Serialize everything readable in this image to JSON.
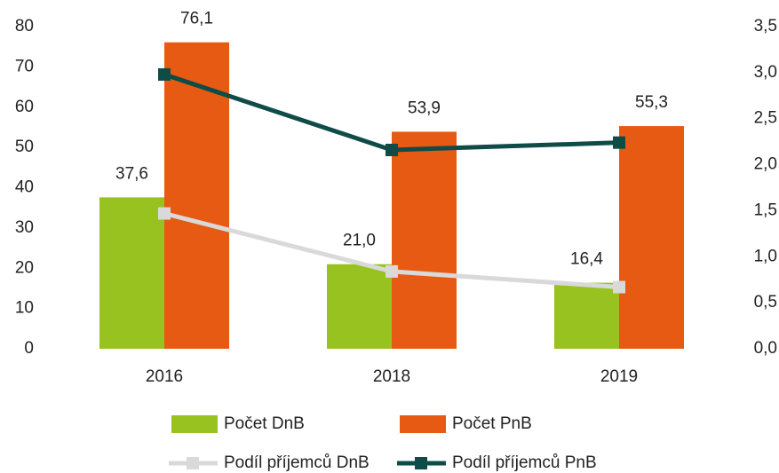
{
  "chart_data": {
    "type": "bar_line",
    "categories": [
      "2016",
      "2018",
      "2019"
    ],
    "series": [
      {
        "name": "Počet DnB",
        "type": "bar",
        "color": "#97c21f",
        "values": [
          37.6,
          21.0,
          16.4
        ],
        "value_labels": [
          "37,6",
          "21,0",
          "16,4"
        ]
      },
      {
        "name": "Počet PnB",
        "type": "bar",
        "color": "#e65a13",
        "values": [
          76.1,
          53.9,
          55.3
        ],
        "value_labels": [
          "76,1",
          "53,9",
          "55,3"
        ]
      },
      {
        "name": "Podíl příjemců DnB",
        "type": "line",
        "axis": "y2",
        "color": "#d9d9d9",
        "values": [
          1.47,
          0.84,
          0.67
        ]
      },
      {
        "name": "Podíl příjemců PnB",
        "type": "line",
        "axis": "y2",
        "color": "#0f4b47",
        "values": [
          2.98,
          2.16,
          2.24
        ]
      }
    ],
    "ylim": [
      0,
      80
    ],
    "yticks": [
      0,
      10,
      20,
      30,
      40,
      50,
      60,
      70,
      80
    ],
    "y2lim": [
      0,
      3.5
    ],
    "y2ticks": [
      {
        "value": 0,
        "label": "0,0"
      },
      {
        "value": 0.5,
        "label": "0,5"
      },
      {
        "value": 1,
        "label": "1,0"
      },
      {
        "value": 1.5,
        "label": "1,5"
      },
      {
        "value": 2,
        "label": "2,0"
      },
      {
        "value": 2.5,
        "label": "2,5"
      },
      {
        "value": 3,
        "label": "3,0"
      },
      {
        "value": 3.5,
        "label": "3,5"
      }
    ]
  }
}
